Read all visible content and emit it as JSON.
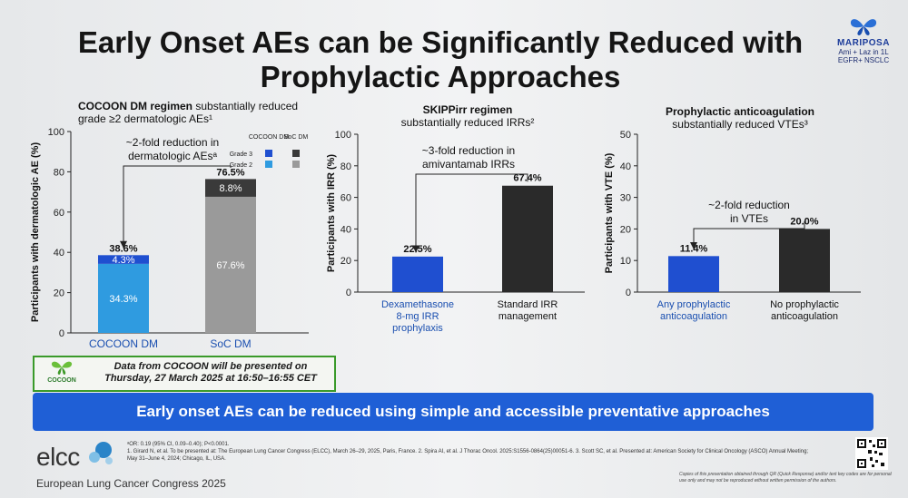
{
  "slide": {
    "title": "Early Onset AEs can be Significantly Reduced with Prophylactic Approaches",
    "brand_name": "MARIPOSA",
    "brand_line1": "Ami + Laz in 1L",
    "brand_line2": "EGFR+ NSCLC",
    "banner": "Early onset AEs can be reduced using simple and accessible preventative approaches",
    "cocoon_logo": "COCOON",
    "cocoon_note_line1": "Data from COCOON will be presented on",
    "cocoon_note_line2": "Thursday, 27 March 2025 at 16:50–16:55 CET",
    "footnote_a": "ᵃOR: 0.19 (95% CI, 0.09–0.40); P<0.0001.",
    "footnote_refs": "1. Girard N, et al. To be presented at: The European Lung Cancer Congress (ELCC), March 26–29, 2025, Paris, France. 2. Spira AI, et al. J Thorac Oncol. 2025:S1556-0864(25)00051-6. 3. Scott SC, et al. Presented at: American Society for Clinical Oncology (ASCO) Annual Meeting; May 31–June 4, 2024; Chicago, IL, USA.",
    "elcc_logo": "elcc",
    "congress": "European Lung Cancer Congress 2025",
    "copyright": "Copies of this presentation obtained through QR (Quick Response) and/or text key codes are for personal use only and may not be reproduced without written permission of the authors."
  },
  "colors": {
    "blue_dark": "#1f4fd0",
    "blue_light": "#2f9be0",
    "gray_dark": "#3a3a3a",
    "gray_light": "#9a9a9a",
    "black_bar": "#2a2a2a",
    "banner": "#1f5fd6"
  },
  "chart_data": [
    {
      "type": "bar",
      "stacked": true,
      "title_bold": "COCOON DM regimen",
      "title_rest": " substantially reduced grade ≥2 dermatologic AEs¹",
      "ylabel": "Participants with dermatologic AE (%)",
      "ylim": [
        0,
        100
      ],
      "yticks": [
        0,
        20,
        40,
        60,
        80,
        100
      ],
      "categories": [
        "COCOON DM",
        "SoC DM"
      ],
      "series": [
        {
          "name": "Grade 2",
          "values": [
            34.3,
            67.6
          ]
        },
        {
          "name": "Grade 3",
          "values": [
            4.3,
            8.8
          ]
        }
      ],
      "totals": [
        "38.6%",
        "76.5%"
      ],
      "segment_labels": [
        [
          "34.3%",
          "4.3%"
        ],
        [
          "67.6%",
          "8.8%"
        ]
      ],
      "legend_headers": [
        "COCOON DM",
        "SoC DM"
      ],
      "legend_rows": [
        "Grade 3",
        "Grade 2"
      ],
      "annotation_line1": "~2-fold reduction in",
      "annotation_line2": "dermatologic AEsᵃ"
    },
    {
      "type": "bar",
      "title_bold": "SKIPPirr regimen",
      "title_rest": "substantially reduced IRRs²",
      "ylabel": "Participants with IRR (%)",
      "ylim": [
        0,
        100
      ],
      "yticks": [
        0,
        20,
        40,
        60,
        80,
        100
      ],
      "categories": [
        "Dexamethasone 8-mg IRR prophylaxis",
        "Standard IRR management"
      ],
      "category_lines": [
        [
          "Dexamethasone",
          "8-mg IRR",
          "prophylaxis"
        ],
        [
          "Standard IRR",
          "management"
        ]
      ],
      "values": [
        22.5,
        67.4
      ],
      "value_labels": [
        "22.5%",
        "67.4%"
      ],
      "annotation_line1": "~3-fold reduction in",
      "annotation_line2": "amivantamab IRRs"
    },
    {
      "type": "bar",
      "title_bold": "Prophylactic anticoagulation",
      "title_rest": "substantially reduced VTEs³",
      "ylabel": "Participants with VTE (%)",
      "ylim": [
        0,
        50
      ],
      "yticks": [
        0,
        10,
        20,
        30,
        40,
        50
      ],
      "categories": [
        "Any prophylactic anticoagulation",
        "No prophylactic anticoagulation"
      ],
      "category_lines": [
        [
          "Any prophylactic",
          "anticoagulation"
        ],
        [
          "No prophylactic",
          "anticoagulation"
        ]
      ],
      "values": [
        11.4,
        20.0
      ],
      "value_labels": [
        "11.4%",
        "20.0%"
      ],
      "annotation_line1": "~2-fold reduction",
      "annotation_line2": "in VTEs"
    }
  ]
}
